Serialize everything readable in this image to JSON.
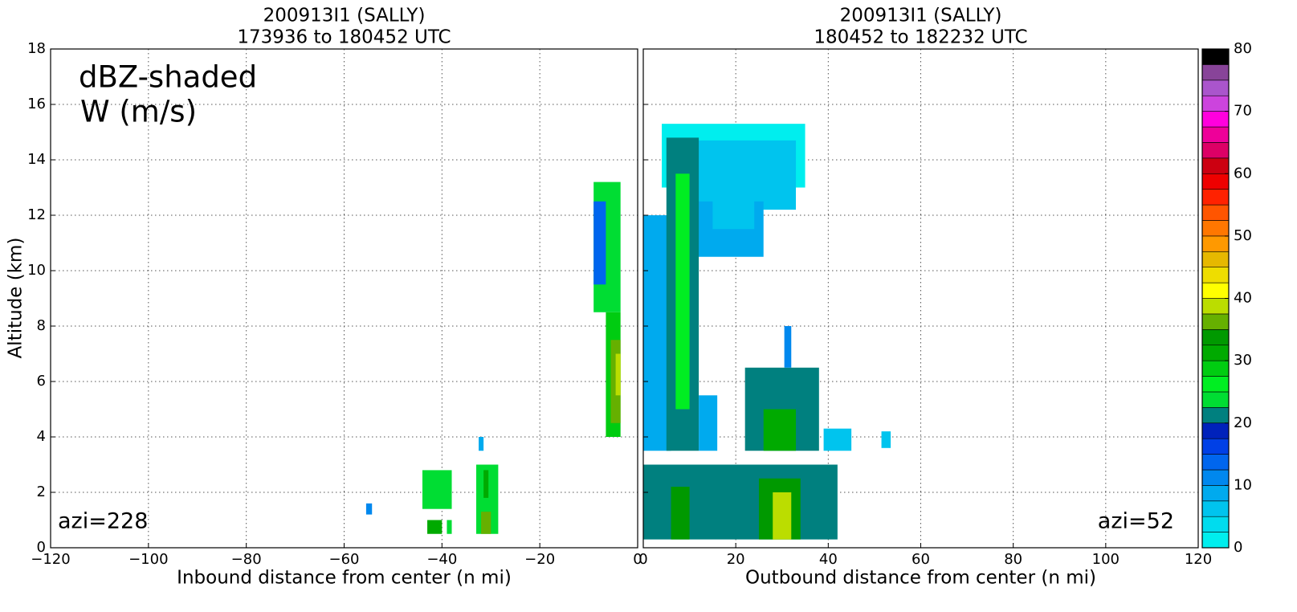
{
  "chart_data": [
    {
      "type": "heatmap",
      "title": [
        "200913I1 (SALLY)",
        "173936 to 180452 UTC"
      ],
      "x_label": "Inbound distance from center (n mi)",
      "y_label": "Altitude (km)",
      "annotations": [
        "dBZ-shaded",
        "W (m/s)",
        "azi=228"
      ],
      "xlim": [
        -120,
        0
      ],
      "xticks": [
        {
          "value": -120,
          "label": "−120"
        },
        {
          "value": -100,
          "label": "−100"
        },
        {
          "value": -80,
          "label": "−80"
        },
        {
          "value": -60,
          "label": "−60"
        },
        {
          "value": -40,
          "label": "−40"
        },
        {
          "value": -20,
          "label": "−20"
        },
        0
      ],
      "ylim": [
        0,
        18
      ],
      "yticks": [
        0,
        2,
        4,
        6,
        8,
        10,
        12,
        14,
        16,
        18
      ],
      "grid": true,
      "cells": [
        {
          "x": [
            -55.5,
            -54.3
          ],
          "y": [
            1.2,
            1.6
          ],
          "dbz": 11
        },
        {
          "x": [
            -44,
            -38
          ],
          "y": [
            1.4,
            2.8
          ],
          "dbz": 24
        },
        {
          "x": [
            -43,
            -40
          ],
          "y": [
            0.5,
            1.0
          ],
          "dbz": 32
        },
        {
          "x": [
            -39,
            -38
          ],
          "y": [
            0.5,
            1.0
          ],
          "dbz": 24
        },
        {
          "x": [
            -33,
            -28.5
          ],
          "y": [
            0.5,
            3.0
          ],
          "dbz": 24
        },
        {
          "x": [
            -32,
            -30
          ],
          "y": [
            0.5,
            1.3
          ],
          "dbz": 36
        },
        {
          "x": [
            -31.5,
            -30.5
          ],
          "y": [
            1.8,
            2.8
          ],
          "dbz": 30
        },
        {
          "x": [
            -32.5,
            -31.5
          ],
          "y": [
            3.5,
            4.0
          ],
          "dbz": 8
        },
        {
          "x": [
            -9,
            -3.5
          ],
          "y": [
            8.5,
            13.2
          ],
          "dbz": 24
        },
        {
          "x": [
            -9,
            -6.5
          ],
          "y": [
            9.5,
            12.5
          ],
          "dbz": 13
        },
        {
          "x": [
            -6.5,
            -3.5
          ],
          "y": [
            4,
            8.5
          ],
          "dbz": 29
        },
        {
          "x": [
            -5.5,
            -3.5
          ],
          "y": [
            4.5,
            7.5
          ],
          "dbz": 36
        },
        {
          "x": [
            -4.5,
            -3.5
          ],
          "y": [
            5.5,
            7
          ],
          "dbz": 39
        }
      ]
    },
    {
      "type": "heatmap",
      "title": [
        "200913I1 (SALLY)",
        "180452 to 182232 UTC"
      ],
      "x_label": "Outbound distance from center (n mi)",
      "annotations": [
        "azi=52"
      ],
      "xlim": [
        0,
        120
      ],
      "xticks": [
        0,
        20,
        40,
        60,
        80,
        100,
        120
      ],
      "ylim": [
        0,
        18
      ],
      "yticks": [
        0,
        2,
        4,
        6,
        8,
        10,
        12,
        14,
        16,
        18
      ],
      "grid": true,
      "cells": [
        {
          "x": [
            4,
            35
          ],
          "y": [
            13,
            15.3
          ],
          "dbz": 2
        },
        {
          "x": [
            9,
            33
          ],
          "y": [
            12.2,
            14.7
          ],
          "dbz": 6
        },
        {
          "x": [
            9,
            26
          ],
          "y": [
            10.5,
            12.5
          ],
          "dbz": 8
        },
        {
          "x": [
            15,
            24
          ],
          "y": [
            11.5,
            14
          ],
          "dbz": 5
        },
        {
          "x": [
            0,
            6
          ],
          "y": [
            3.5,
            12
          ],
          "dbz": 9
        },
        {
          "x": [
            5,
            12
          ],
          "y": [
            3.5,
            14.8
          ],
          "dbz": 22
        },
        {
          "x": [
            7,
            10
          ],
          "y": [
            5,
            13.5
          ],
          "dbz": 27
        },
        {
          "x": [
            12,
            16
          ],
          "y": [
            3.5,
            5.5
          ],
          "dbz": 8
        },
        {
          "x": [
            0,
            42
          ],
          "y": [
            0.3,
            3
          ],
          "dbz": 22
        },
        {
          "x": [
            6,
            10
          ],
          "y": [
            0.3,
            2.2
          ],
          "dbz": 34
        },
        {
          "x": [
            25,
            34
          ],
          "y": [
            0.3,
            2.5
          ],
          "dbz": 33
        },
        {
          "x": [
            28,
            32
          ],
          "y": [
            0.3,
            2
          ],
          "dbz": 38
        },
        {
          "x": [
            22,
            38
          ],
          "y": [
            3.5,
            6.5
          ],
          "dbz": 22
        },
        {
          "x": [
            26,
            33
          ],
          "y": [
            3.5,
            5
          ],
          "dbz": 30
        },
        {
          "x": [
            30.5,
            32
          ],
          "y": [
            6.5,
            8
          ],
          "dbz": 10
        },
        {
          "x": [
            39,
            45
          ],
          "y": [
            3.5,
            4.3
          ],
          "dbz": 6
        },
        {
          "x": [
            51.5,
            53.5
          ],
          "y": [
            3.6,
            4.2
          ],
          "dbz": 6
        }
      ],
      "colorbar": {
        "lim": [
          0,
          80
        ],
        "ticks": [
          0,
          10,
          20,
          30,
          40,
          50,
          60,
          70,
          80
        ],
        "colors": [
          "#00eeee",
          "#00dcee",
          "#00c4ee",
          "#00aaee",
          "#0088ee",
          "#0066ee",
          "#0040e6",
          "#0022bb",
          "#00807f",
          "#00dd33",
          "#00ee22",
          "#00cc11",
          "#00aa00",
          "#009900",
          "#66b000",
          "#bbdd00",
          "#ffff00",
          "#eedd00",
          "#e6b800",
          "#ff9900",
          "#ff7700",
          "#ff5500",
          "#ff2200",
          "#ee0000",
          "#cc0011",
          "#dd0066",
          "#ee0099",
          "#ff00dd",
          "#cc44dd",
          "#aa55cc",
          "#884499",
          "#000000"
        ]
      }
    }
  ]
}
